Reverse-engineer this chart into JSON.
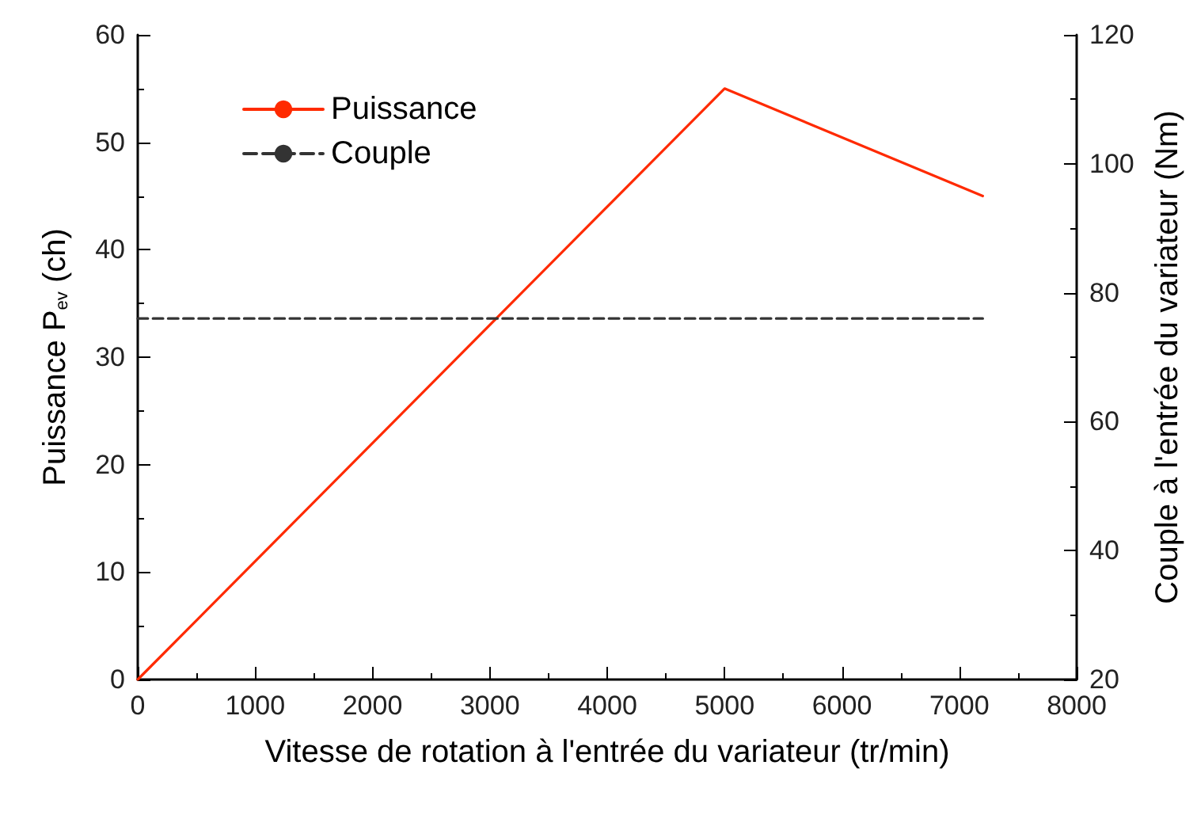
{
  "chart_data": {
    "type": "line",
    "xlabel": "Vitesse de rotation à l'entrée du variateur (tr/min)",
    "ylabel": "Puissance P$_{ev}$ (ch)",
    "y2label": "Couple à l'entrée du variateur (Nm)",
    "series": [
      {
        "name": "Puissance",
        "color": "#ff2a00",
        "x": [
          0,
          5000,
          7200
        ],
        "values": [
          0,
          55,
          45
        ],
        "line_style": "solid"
      },
      {
        "name": "Couple",
        "color": "#333333",
        "x": [
          0,
          7200
        ],
        "values": [
          76,
          76
        ],
        "axis": "y2",
        "line_style": "dashed"
      }
    ],
    "xlim": [
      0,
      8000
    ],
    "xticks": [
      0,
      1000,
      2000,
      3000,
      4000,
      5000,
      6000,
      7000,
      8000
    ],
    "ylim": [
      0,
      60
    ],
    "yticks": [
      0,
      10,
      20,
      30,
      40,
      50,
      60
    ],
    "y2lim": [
      20,
      120
    ],
    "y2ticks": [
      20,
      40,
      60,
      80,
      100,
      120
    ],
    "legend": "top left",
    "marker": "none",
    "grid": false
  }
}
